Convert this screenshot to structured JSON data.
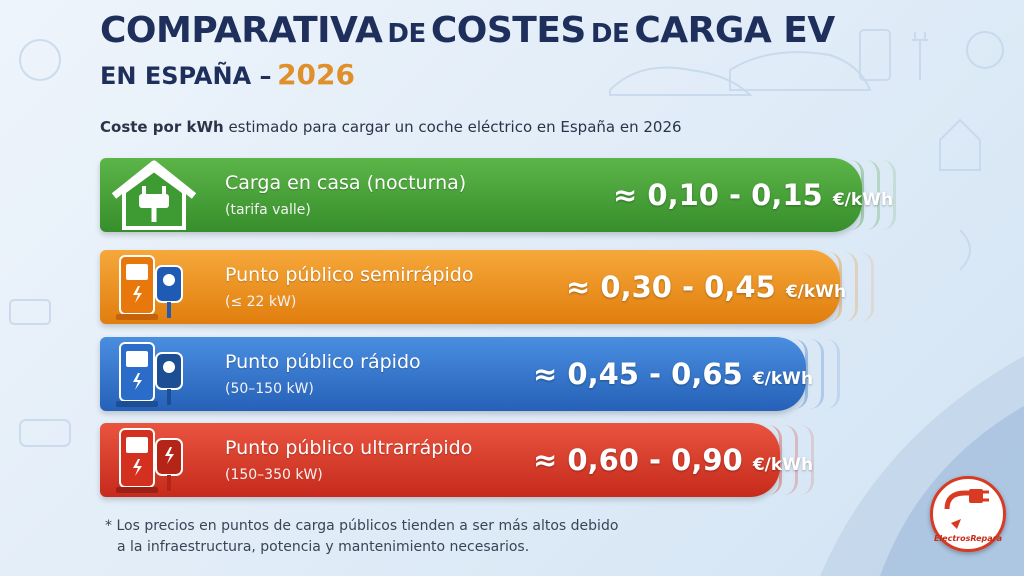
{
  "title": {
    "line1_part1": "COMPARATIVA",
    "line1_part2": "DE",
    "line1_part3": "COSTES",
    "line1_part4": "DE",
    "line1_part5": "CARGA EV",
    "line2_part1": "EN ESPAÑA –",
    "year": "2026"
  },
  "subtitle": {
    "bold": "Coste por kWh",
    "rest": "estimado para cargar un coche eléctrico en España en 2026"
  },
  "rows": [
    {
      "label": "Carga en casa (nocturna)",
      "sublabel": "(tarifa valle)",
      "price": "≈ 0,10 - 0,15",
      "unit": "€/kWh",
      "color": "#3e9a33",
      "icon": "house-plug-icon"
    },
    {
      "label": "Punto público semirrápido",
      "sublabel": "(≤ 22 kW)",
      "price": "≈ 0,30 - 0,45",
      "unit": "€/kWh",
      "color": "#ec8a12",
      "icon": "orange-charger-icon"
    },
    {
      "label": "Punto público rápido",
      "sublabel": "(50–150 kW)",
      "price": "≈ 0,45 - 0,65",
      "unit": "€/kWh",
      "color": "#2f6fca",
      "icon": "blue-charger-icon"
    },
    {
      "label": "Punto público ultrarrápido",
      "sublabel": "(150–350 kW)",
      "price": "≈ 0,60 - 0,90",
      "unit": "€/kWh",
      "color": "#d63324",
      "icon": "red-charger-icon"
    }
  ],
  "footnote": {
    "line1": "* Los precios en puntos de carga públicos tienden a ser más altos debido",
    "line2": "a la infraestructura, potencia y mantenimiento necesarios."
  },
  "logo": {
    "text": "ElectrosRepara"
  }
}
